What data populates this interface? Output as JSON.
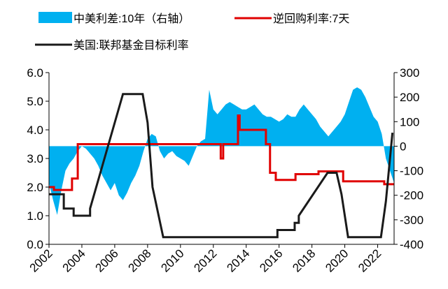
{
  "chart_data": {
    "type": "line",
    "series": [
      {
        "name": "中美利差:10年（右轴）",
        "color": "#00b0f0",
        "axis": "y2",
        "kind": "area",
        "x": [
          2002,
          2002.25,
          2002.5,
          2002.75,
          2003,
          2003.25,
          2003.5,
          2003.75,
          2004,
          2004.25,
          2004.5,
          2004.75,
          2005,
          2005.25,
          2005.5,
          2005.75,
          2006,
          2006.25,
          2006.5,
          2006.75,
          2007,
          2007.25,
          2007.5,
          2007.75,
          2008,
          2008.25,
          2008.5,
          2008.75,
          2009,
          2009.25,
          2009.5,
          2009.75,
          2010,
          2010.25,
          2010.5,
          2010.75,
          2011,
          2011.25,
          2011.5,
          2011.75,
          2012,
          2012.25,
          2012.5,
          2012.75,
          2013,
          2013.25,
          2013.5,
          2013.75,
          2014,
          2014.25,
          2014.5,
          2014.75,
          2015,
          2015.25,
          2015.5,
          2015.75,
          2016,
          2016.25,
          2016.5,
          2016.75,
          2017,
          2017.25,
          2017.5,
          2017.75,
          2018,
          2018.25,
          2018.5,
          2018.75,
          2019,
          2019.25,
          2019.5,
          2019.75,
          2020,
          2020.25,
          2020.5,
          2020.75,
          2021,
          2021.25,
          2021.5,
          2021.75,
          2022,
          2022.25,
          2022.5,
          2022.75,
          2023
        ],
        "values": [
          -150,
          -220,
          -280,
          -180,
          -100,
          -70,
          -50,
          -20,
          0,
          -10,
          -30,
          -50,
          -80,
          -120,
          -150,
          -180,
          -150,
          -200,
          -220,
          -190,
          -150,
          -120,
          -80,
          -20,
          30,
          50,
          40,
          -20,
          -50,
          -30,
          -20,
          -40,
          -50,
          -60,
          -80,
          -40,
          0,
          20,
          30,
          230,
          150,
          130,
          150,
          170,
          180,
          170,
          160,
          150,
          150,
          160,
          170,
          150,
          130,
          120,
          120,
          110,
          100,
          110,
          130,
          120,
          120,
          150,
          170,
          150,
          130,
          110,
          80,
          60,
          40,
          60,
          80,
          100,
          130,
          180,
          230,
          240,
          230,
          200,
          160,
          120,
          100,
          50,
          -50,
          -100,
          -150
        ]
      },
      {
        "name": "逆回购利率:7天",
        "color": "#e00000",
        "axis": "y",
        "x": [
          2002,
          2002.3,
          2002.3,
          2003.4,
          2003.4,
          2003.75,
          2003.75,
          2012.45,
          2012.45,
          2012.6,
          2012.6,
          2013.5,
          2013.5,
          2013.6,
          2013.6,
          2015.2,
          2015.2,
          2015.45,
          2015.45,
          2015.8,
          2015.8,
          2017.0,
          2017.0,
          2018.4,
          2018.4,
          2019.9,
          2019.9,
          2022.4,
          2022.4,
          2023
        ],
        "values": [
          2.0,
          2.0,
          1.9,
          1.9,
          2.3,
          2.3,
          3.5,
          3.5,
          3.0,
          3.0,
          3.5,
          3.5,
          4.5,
          4.5,
          4.0,
          4.0,
          3.5,
          3.5,
          2.5,
          2.5,
          2.25,
          2.25,
          2.45,
          2.45,
          2.55,
          2.55,
          2.2,
          2.2,
          2.1,
          2.1
        ]
      },
      {
        "name": "美国:联邦基金目标利率",
        "color": "#1a1a1a",
        "axis": "y",
        "x": [
          2002,
          2002.9,
          2002.9,
          2003.5,
          2003.5,
          2004.5,
          2004.5,
          2006.5,
          2007.7,
          2008.0,
          2008.3,
          2008.95,
          2015.9,
          2015.9,
          2016.95,
          2016.95,
          2017.2,
          2017.2,
          2018.95,
          2019.5,
          2019.8,
          2020.2,
          2022.2,
          2022.5,
          2022.9
        ],
        "values": [
          1.75,
          1.75,
          1.25,
          1.25,
          1.0,
          1.0,
          1.25,
          5.25,
          5.25,
          4.25,
          2.0,
          0.25,
          0.25,
          0.5,
          0.5,
          0.75,
          0.75,
          1.0,
          2.5,
          2.5,
          1.75,
          0.25,
          0.25,
          1.5,
          3.9
        ]
      }
    ],
    "xlim": [
      2002,
      2023
    ],
    "xticks": [
      2002,
      2004,
      2006,
      2008,
      2010,
      2012,
      2014,
      2016,
      2018,
      2020,
      2022
    ],
    "ylim": [
      0,
      6
    ],
    "yticks": [
      {
        "value": 0,
        "label": "0.0"
      },
      {
        "value": 1,
        "label": "1.0"
      },
      {
        "value": 2,
        "label": "2.0"
      },
      {
        "value": 3,
        "label": "3.0"
      },
      {
        "value": 4,
        "label": "4.0"
      },
      {
        "value": 5,
        "label": "5.0"
      },
      {
        "value": 6,
        "label": "6.0"
      }
    ],
    "y2lim": [
      -400,
      300
    ],
    "y2ticks": [
      -400,
      -300,
      -200,
      -100,
      0,
      100,
      200,
      300
    ]
  }
}
